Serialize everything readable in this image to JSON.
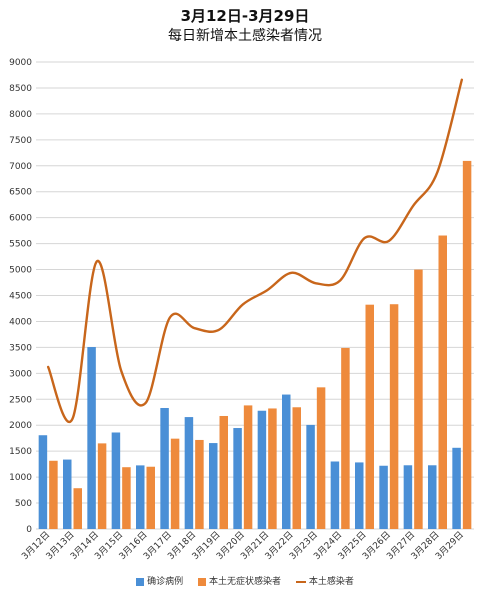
{
  "chart_data": {
    "type": "bar",
    "title": "3月12日-3月29日",
    "subtitle": "每日新增本土感染者情况",
    "categories": [
      "3月12日",
      "3月13日",
      "3月14日",
      "3月15日",
      "3月16日",
      "3月17日",
      "3月18日",
      "3月19日",
      "3月20日",
      "3月21日",
      "3月22日",
      "3月23日",
      "3月24日",
      "3月25日",
      "3月26日",
      "3月27日",
      "3月28日",
      "3月29日"
    ],
    "series": [
      {
        "name": "确诊病例",
        "type": "bar",
        "color": "#4a8fd6",
        "values": [
          1807,
          1338,
          3507,
          1860,
          1226,
          2332,
          2157,
          1656,
          1946,
          2279,
          2591,
          2006,
          1301,
          1283,
          1219,
          1228,
          1228,
          1565
        ]
      },
      {
        "name": "本土无症状感染者",
        "type": "bar",
        "color": "#ee8a3c",
        "values": [
          1315,
          786,
          1650,
          1191,
          1200,
          1741,
          1716,
          2178,
          2382,
          2323,
          2346,
          2730,
          3489,
          4323,
          4332,
          5000,
          5656,
          7094
        ]
      },
      {
        "name": "本土感染者",
        "type": "line",
        "color": "#c8661b",
        "values": [
          3122,
          2124,
          5157,
          3051,
          2426,
          4073,
          3873,
          3834,
          4328,
          4602,
          4937,
          4736,
          4790,
          5606,
          5551,
          6228,
          6884,
          8658
        ]
      }
    ],
    "yticks": [
      0,
      500,
      1000,
      1500,
      2000,
      2500,
      3000,
      3500,
      4000,
      4500,
      5000,
      5500,
      6000,
      6500,
      7000,
      7500,
      8000,
      8500,
      9000
    ],
    "ylim": [
      0,
      9000
    ],
    "grid": true,
    "legend_position": "bottom"
  }
}
